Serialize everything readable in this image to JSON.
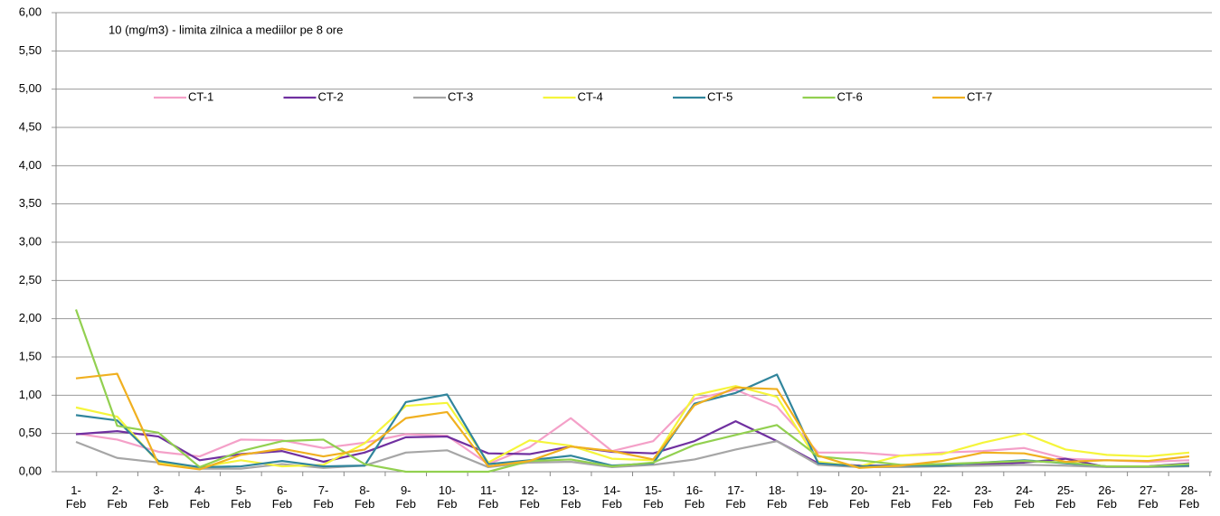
{
  "chart_data": {
    "type": "line",
    "annotation": "10 (mg/m3) - limita zilnica a mediilor pe 8 ore",
    "categories": [
      "1-Feb",
      "2-Feb",
      "3-Feb",
      "4-Feb",
      "5-Feb",
      "6-Feb",
      "7-Feb",
      "8-Feb",
      "9-Feb",
      "10-Feb",
      "11-Feb",
      "12-Feb",
      "13-Feb",
      "14-Feb",
      "15-Feb",
      "16-Feb",
      "17-Feb",
      "18-Feb",
      "19-Feb",
      "20-Feb",
      "21-Feb",
      "22-Feb",
      "23-Feb",
      "24-Feb",
      "25-Feb",
      "26-Feb",
      "27-Feb",
      "28-Feb"
    ],
    "series": [
      {
        "name": "CT-1",
        "color": "#f4a0c8",
        "values": [
          0.5,
          0.42,
          0.26,
          0.2,
          0.42,
          0.41,
          0.31,
          0.38,
          0.49,
          0.47,
          0.1,
          0.32,
          0.7,
          0.27,
          0.4,
          0.95,
          1.07,
          0.85,
          0.25,
          0.25,
          0.21,
          0.25,
          0.27,
          0.31,
          0.17,
          0.15,
          0.13,
          0.15
        ]
      },
      {
        "name": "CT-2",
        "color": "#7030a0",
        "values": [
          0.49,
          0.53,
          0.46,
          0.15,
          0.23,
          0.27,
          0.13,
          0.25,
          0.45,
          0.46,
          0.24,
          0.23,
          0.33,
          0.26,
          0.24,
          0.4,
          0.66,
          0.4,
          0.11,
          0.08,
          0.08,
          0.09,
          0.1,
          0.12,
          0.17,
          0.06,
          0.07,
          0.11
        ]
      },
      {
        "name": "CT-3",
        "color": "#a6a6a6",
        "values": [
          0.39,
          0.18,
          0.12,
          0.04,
          0.04,
          0.1,
          0.05,
          0.08,
          0.25,
          0.28,
          0.06,
          0.12,
          0.13,
          0.06,
          0.09,
          0.16,
          0.29,
          0.4,
          0.09,
          0.06,
          0.06,
          0.07,
          0.08,
          0.09,
          0.08,
          0.06,
          0.06,
          0.07
        ]
      },
      {
        "name": "CT-4",
        "color": "#f5f53b",
        "values": [
          0.84,
          0.72,
          0.12,
          0.06,
          0.15,
          0.07,
          0.09,
          0.37,
          0.86,
          0.9,
          0.12,
          0.41,
          0.34,
          0.17,
          0.15,
          1.0,
          1.12,
          0.98,
          0.13,
          0.07,
          0.21,
          0.23,
          0.38,
          0.5,
          0.29,
          0.22,
          0.2,
          0.25
        ]
      },
      {
        "name": "CT-5",
        "color": "#31859c",
        "values": [
          0.74,
          0.67,
          0.14,
          0.06,
          0.07,
          0.14,
          0.07,
          0.08,
          0.91,
          1.01,
          0.1,
          0.15,
          0.21,
          0.08,
          0.11,
          0.89,
          1.03,
          1.27,
          0.11,
          0.07,
          0.08,
          0.08,
          0.12,
          0.15,
          0.11,
          0.07,
          0.07,
          0.08
        ]
      },
      {
        "name": "CT-6",
        "color": "#92d050",
        "values": [
          2.12,
          0.6,
          0.51,
          0.06,
          0.27,
          0.4,
          0.42,
          0.1,
          0.0,
          0.0,
          0.0,
          0.14,
          0.16,
          0.07,
          0.12,
          0.35,
          0.48,
          0.61,
          0.2,
          0.15,
          0.09,
          0.1,
          0.12,
          0.14,
          0.12,
          0.07,
          0.07,
          0.1
        ]
      },
      {
        "name": "CT-7",
        "color": "#f0b020",
        "values": [
          1.22,
          1.28,
          0.1,
          0.03,
          0.22,
          0.3,
          0.2,
          0.29,
          0.7,
          0.78,
          0.07,
          0.14,
          0.33,
          0.27,
          0.16,
          0.87,
          1.1,
          1.08,
          0.21,
          0.05,
          0.08,
          0.14,
          0.25,
          0.24,
          0.13,
          0.15,
          0.14,
          0.2
        ]
      }
    ],
    "ylim": [
      0,
      6
    ],
    "yticks": [
      {
        "value": 0,
        "label": "0,00"
      },
      {
        "value": 0.5,
        "label": "0,50"
      },
      {
        "value": 1,
        "label": "1,00"
      },
      {
        "value": 1.5,
        "label": "1,50"
      },
      {
        "value": 2,
        "label": "2,00"
      },
      {
        "value": 2.5,
        "label": "2,50"
      },
      {
        "value": 3,
        "label": "3,00"
      },
      {
        "value": 3.5,
        "label": "3,50"
      },
      {
        "value": 4,
        "label": "4,00"
      },
      {
        "value": 4.5,
        "label": "4,50"
      },
      {
        "value": 5,
        "label": "5,00"
      },
      {
        "value": 5.5,
        "label": "5,50"
      },
      {
        "value": 6,
        "label": "6,00"
      }
    ],
    "grid": true,
    "legend": "top"
  }
}
